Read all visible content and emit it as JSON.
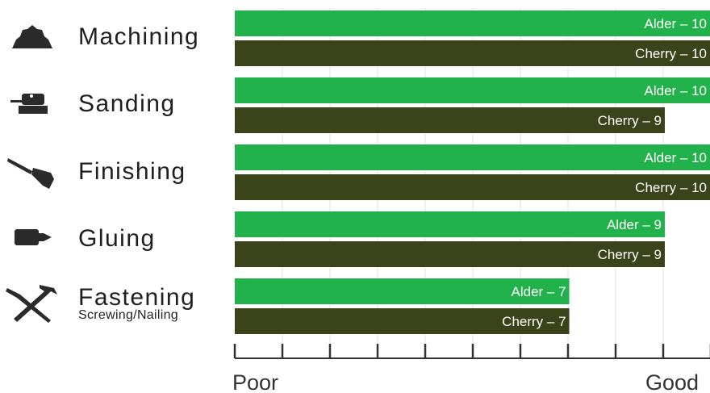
{
  "chart_data": {
    "type": "bar",
    "orientation": "horizontal",
    "categories": [
      "Machining",
      "Sanding",
      "Finishing",
      "Gluing",
      "Fastening"
    ],
    "category_subtitles": [
      "",
      "",
      "",
      "",
      "Screwing/Nailing"
    ],
    "category_icons": [
      "saw-blade-icon",
      "sander-icon",
      "paintbrush-icon",
      "glue-bottle-icon",
      "screwdriver-hammer-icon"
    ],
    "series": [
      {
        "name": "Alder",
        "color": "#22b24c",
        "values": [
          10,
          10,
          10,
          9,
          7
        ],
        "labels": [
          "Alder – 10",
          "Alder – 10",
          "Alder – 10",
          "Alder – 9",
          "Alder – 7"
        ]
      },
      {
        "name": "Cherry",
        "color": "#3b431a",
        "values": [
          10,
          9,
          10,
          9,
          7
        ],
        "labels": [
          "Cherry – 10",
          "Cherry – 9",
          "Cherry – 10",
          "Cherry – 9",
          "Cherry – 7"
        ]
      }
    ],
    "xlim": [
      0,
      10
    ],
    "x_tick_count": 11,
    "x_start_label": "Poor",
    "x_end_label": "Good",
    "grid": true,
    "legend": "none"
  }
}
